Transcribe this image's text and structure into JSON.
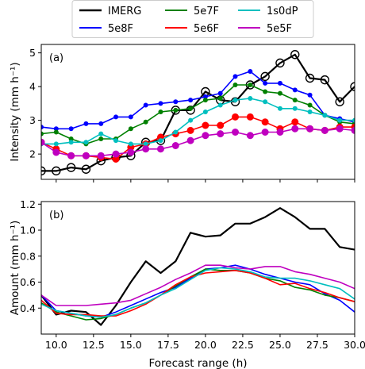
{
  "legend": {
    "entries": [
      {
        "name": "IMERG",
        "color": "#000000"
      },
      {
        "name": "5e8F",
        "color": "#0000ff"
      },
      {
        "name": "5e7F",
        "color": "#008000"
      },
      {
        "name": "5e6F",
        "color": "#ff0000"
      },
      {
        "name": "1s0dP",
        "color": "#00bfbf"
      },
      {
        "name": "5e5F",
        "color": "#bf00bf"
      }
    ]
  },
  "chart_data": [
    {
      "type": "line",
      "panel_label": "(a)",
      "ylabel": "Intensity (mm h⁻¹)",
      "xlabel": "",
      "xlim": [
        9,
        30
      ],
      "ylim": [
        1.25,
        5.25
      ],
      "yticks": [
        2,
        3,
        4,
        5
      ],
      "x": [
        9,
        10,
        11,
        12,
        13,
        14,
        15,
        16,
        17,
        18,
        19,
        20,
        21,
        22,
        23,
        24,
        25,
        26,
        27,
        28,
        29,
        30
      ],
      "series": [
        {
          "name": "IMERG",
          "color": "#000000",
          "marker": "open-circle",
          "values": [
            1.5,
            1.5,
            1.6,
            1.55,
            1.8,
            1.9,
            1.95,
            2.35,
            2.4,
            3.3,
            3.3,
            3.85,
            3.6,
            3.55,
            4.05,
            4.3,
            4.7,
            4.95,
            4.25,
            4.2,
            3.55,
            4.0
          ]
        },
        {
          "name": "5e8F",
          "color": "#0000ff",
          "marker": "dot",
          "values": [
            2.8,
            2.75,
            2.75,
            2.9,
            2.9,
            3.1,
            3.1,
            3.45,
            3.5,
            3.55,
            3.6,
            3.7,
            3.8,
            4.3,
            4.45,
            4.1,
            4.1,
            3.9,
            3.75,
            3.15,
            3.05,
            2.95
          ]
        },
        {
          "name": "5e7F",
          "color": "#008000",
          "marker": "dot",
          "values": [
            2.6,
            2.65,
            2.45,
            2.3,
            2.45,
            2.45,
            2.75,
            2.95,
            3.25,
            3.3,
            3.35,
            3.6,
            3.65,
            4.05,
            4.05,
            3.85,
            3.8,
            3.6,
            3.45,
            3.15,
            2.95,
            2.9
          ]
        },
        {
          "name": "5e6F",
          "color": "#ff0000",
          "marker": "dot",
          "values": [
            2.35,
            2.15,
            1.95,
            1.95,
            1.9,
            1.85,
            2.2,
            2.3,
            2.5,
            2.6,
            2.7,
            2.85,
            2.85,
            3.1,
            3.1,
            2.95,
            2.75,
            2.95,
            2.75,
            2.7,
            2.8,
            2.8
          ]
        },
        {
          "name": "1s0dP",
          "color": "#00bfbf",
          "marker": "dot",
          "values": [
            2.3,
            2.3,
            2.35,
            2.35,
            2.6,
            2.4,
            2.3,
            2.3,
            2.4,
            2.65,
            3.0,
            3.25,
            3.45,
            3.6,
            3.65,
            3.55,
            3.35,
            3.35,
            3.25,
            3.15,
            3.0,
            3.0
          ]
        },
        {
          "name": "5e5F",
          "color": "#bf00bf",
          "marker": "dot",
          "values": [
            2.35,
            2.05,
            1.95,
            1.95,
            1.95,
            2.0,
            2.05,
            2.15,
            2.15,
            2.25,
            2.4,
            2.55,
            2.6,
            2.65,
            2.55,
            2.65,
            2.65,
            2.75,
            2.75,
            2.7,
            2.75,
            2.7
          ]
        }
      ]
    },
    {
      "type": "line",
      "panel_label": "(b)",
      "ylabel": "Amount (mm h⁻¹)",
      "xlabel": "Forecast range (h)",
      "xlim": [
        9,
        30
      ],
      "ylim": [
        0.2,
        1.22
      ],
      "yticks": [
        0.4,
        0.6,
        0.8,
        1.0,
        1.2
      ],
      "xticks": [
        10.0,
        12.5,
        15.0,
        17.5,
        20.0,
        22.5,
        25.0,
        27.5,
        30.0
      ],
      "xtick_labels": [
        "10.0",
        "12.5",
        "15.0",
        "17.5",
        "20.0",
        "22.5",
        "25.0",
        "27.5",
        "30.0"
      ],
      "x": [
        9,
        10,
        11,
        12,
        13,
        14,
        15,
        16,
        17,
        18,
        19,
        20,
        21,
        22,
        23,
        24,
        25,
        26,
        27,
        28,
        29,
        30
      ],
      "series": [
        {
          "name": "IMERG",
          "color": "#000000",
          "values": [
            0.5,
            0.35,
            0.38,
            0.37,
            0.27,
            0.42,
            0.6,
            0.76,
            0.67,
            0.76,
            0.98,
            0.95,
            0.96,
            1.05,
            1.05,
            1.1,
            1.17,
            1.1,
            1.01,
            1.01,
            0.87,
            0.85
          ]
        },
        {
          "name": "5e8F",
          "color": "#0000ff",
          "values": [
            0.5,
            0.38,
            0.36,
            0.34,
            0.33,
            0.37,
            0.42,
            0.47,
            0.52,
            0.56,
            0.63,
            0.7,
            0.71,
            0.73,
            0.7,
            0.66,
            0.63,
            0.6,
            0.58,
            0.51,
            0.46,
            0.37
          ]
        },
        {
          "name": "5e7F",
          "color": "#008000",
          "values": [
            0.44,
            0.37,
            0.34,
            0.31,
            0.32,
            0.35,
            0.4,
            0.44,
            0.5,
            0.57,
            0.64,
            0.7,
            0.69,
            0.69,
            0.67,
            0.63,
            0.61,
            0.56,
            0.54,
            0.5,
            0.48,
            0.45
          ]
        },
        {
          "name": "5e6F",
          "color": "#ff0000",
          "values": [
            0.46,
            0.36,
            0.35,
            0.35,
            0.34,
            0.34,
            0.38,
            0.43,
            0.5,
            0.58,
            0.64,
            0.67,
            0.68,
            0.69,
            0.67,
            0.63,
            0.58,
            0.59,
            0.55,
            0.52,
            0.48,
            0.45
          ]
        },
        {
          "name": "1s0dP",
          "color": "#00bfbf",
          "values": [
            0.43,
            0.38,
            0.36,
            0.34,
            0.33,
            0.35,
            0.4,
            0.44,
            0.5,
            0.55,
            0.62,
            0.69,
            0.71,
            0.7,
            0.68,
            0.64,
            0.63,
            0.63,
            0.61,
            0.58,
            0.55,
            0.47
          ]
        },
        {
          "name": "5e5F",
          "color": "#bf00bf",
          "values": [
            0.5,
            0.42,
            0.42,
            0.42,
            0.43,
            0.44,
            0.46,
            0.51,
            0.56,
            0.62,
            0.67,
            0.73,
            0.73,
            0.71,
            0.7,
            0.72,
            0.72,
            0.68,
            0.66,
            0.63,
            0.6,
            0.55
          ]
        }
      ]
    }
  ]
}
